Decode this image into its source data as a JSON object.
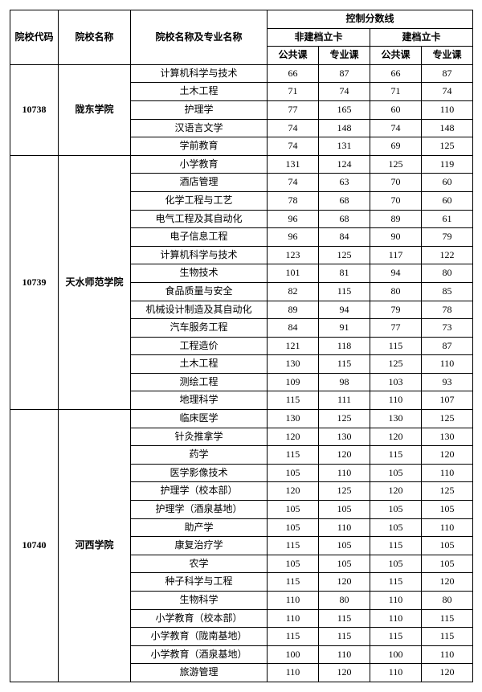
{
  "header": {
    "code": "院校代码",
    "school": "院校名称",
    "major": "院校名称及专业名称",
    "control": "控制分数线",
    "nonCard": "非建档立卡",
    "card": "建档立卡",
    "pub": "公共课",
    "pro": "专业课"
  },
  "groups": [
    {
      "code": "10738",
      "school": "陇东学院",
      "rows": [
        {
          "major": "计算机科学与技术",
          "a": 66,
          "b": 87,
          "c": 66,
          "d": 87
        },
        {
          "major": "土木工程",
          "a": 71,
          "b": 74,
          "c": 71,
          "d": 74
        },
        {
          "major": "护理学",
          "a": 77,
          "b": 165,
          "c": 60,
          "d": 110
        },
        {
          "major": "汉语言文学",
          "a": 74,
          "b": 148,
          "c": 74,
          "d": 148
        },
        {
          "major": "学前教育",
          "a": 74,
          "b": 131,
          "c": 69,
          "d": 125
        }
      ]
    },
    {
      "code": "10739",
      "school": "天水师范学院",
      "rows": [
        {
          "major": "小学教育",
          "a": 131,
          "b": 124,
          "c": 125,
          "d": 119
        },
        {
          "major": "酒店管理",
          "a": 74,
          "b": 63,
          "c": 70,
          "d": 60
        },
        {
          "major": "化学工程与工艺",
          "a": 78,
          "b": 68,
          "c": 70,
          "d": 60
        },
        {
          "major": "电气工程及其自动化",
          "a": 96,
          "b": 68,
          "c": 89,
          "d": 61
        },
        {
          "major": "电子信息工程",
          "a": 96,
          "b": 84,
          "c": 90,
          "d": 79
        },
        {
          "major": "计算机科学与技术",
          "a": 123,
          "b": 125,
          "c": 117,
          "d": 122
        },
        {
          "major": "生物技术",
          "a": 101,
          "b": 81,
          "c": 94,
          "d": 80
        },
        {
          "major": "食品质量与安全",
          "a": 82,
          "b": 115,
          "c": 80,
          "d": 85
        },
        {
          "major": "机械设计制造及其自动化",
          "a": 89,
          "b": 94,
          "c": 79,
          "d": 78
        },
        {
          "major": "汽车服务工程",
          "a": 84,
          "b": 91,
          "c": 77,
          "d": 73
        },
        {
          "major": "工程造价",
          "a": 121,
          "b": 118,
          "c": 115,
          "d": 87
        },
        {
          "major": "土木工程",
          "a": 130,
          "b": 115,
          "c": 125,
          "d": 110
        },
        {
          "major": "测绘工程",
          "a": 109,
          "b": 98,
          "c": 103,
          "d": 93
        },
        {
          "major": "地理科学",
          "a": 115,
          "b": 111,
          "c": 110,
          "d": 107
        }
      ]
    },
    {
      "code": "10740",
      "school": "河西学院",
      "rows": [
        {
          "major": "临床医学",
          "a": 130,
          "b": 125,
          "c": 130,
          "d": 125
        },
        {
          "major": "针灸推拿学",
          "a": 120,
          "b": 130,
          "c": 120,
          "d": 130
        },
        {
          "major": "药学",
          "a": 115,
          "b": 120,
          "c": 115,
          "d": 120
        },
        {
          "major": "医学影像技术",
          "a": 105,
          "b": 110,
          "c": 105,
          "d": 110
        },
        {
          "major": "护理学（校本部）",
          "a": 120,
          "b": 125,
          "c": 120,
          "d": 125
        },
        {
          "major": "护理学（酒泉基地）",
          "a": 105,
          "b": 105,
          "c": 105,
          "d": 105
        },
        {
          "major": "助产学",
          "a": 105,
          "b": 110,
          "c": 105,
          "d": 110
        },
        {
          "major": "康复治疗学",
          "a": 115,
          "b": 105,
          "c": 115,
          "d": 105
        },
        {
          "major": "农学",
          "a": 105,
          "b": 105,
          "c": 105,
          "d": 105
        },
        {
          "major": "种子科学与工程",
          "a": 115,
          "b": 120,
          "c": 115,
          "d": 120
        },
        {
          "major": "生物科学",
          "a": 110,
          "b": 80,
          "c": 110,
          "d": 80
        },
        {
          "major": "小学教育（校本部）",
          "a": 110,
          "b": 115,
          "c": 110,
          "d": 115
        },
        {
          "major": "小学教育（陇南基地）",
          "a": 115,
          "b": 115,
          "c": 115,
          "d": 115
        },
        {
          "major": "小学教育（酒泉基地）",
          "a": 100,
          "b": 110,
          "c": 100,
          "d": 110
        },
        {
          "major": "旅游管理",
          "a": 110,
          "b": 120,
          "c": 110,
          "d": 120
        }
      ]
    }
  ]
}
